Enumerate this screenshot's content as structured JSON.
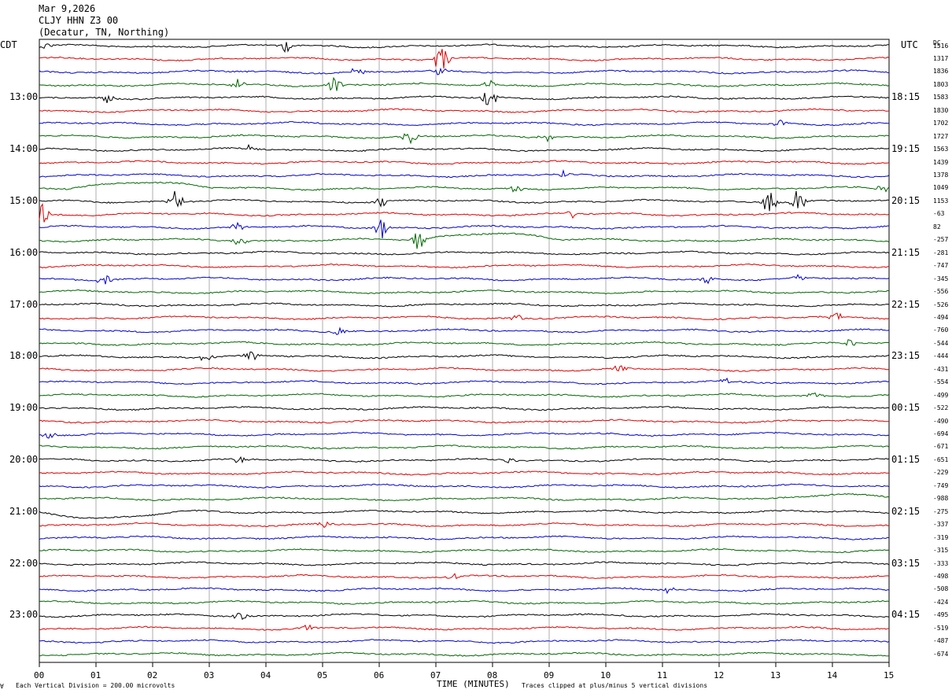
{
  "header": {
    "date": "Mar 9,2026",
    "station": "CLJY HHN Z3 00",
    "location": "(Decatur, TN, Northing)"
  },
  "left_zone_label": "CDT",
  "right_zone_label": "UTC",
  "dc_header": "DC",
  "footer": {
    "scale_note": "Each Vertical Division =  200.00 microvolts",
    "clip_note": "Traces clipped at plus/minus 5 vertical divisions",
    "corner_mark": "∀"
  },
  "colors": {
    "trace_cycle": [
      "#000000",
      "#dd0000",
      "#0000cc",
      "#006600"
    ],
    "grid": "#999999"
  },
  "chart_data": {
    "type": "line",
    "title": "CLJY HHN Z3 00",
    "xlabel": "TIME (MINUTES)",
    "ylabel": "",
    "xlim": [
      0,
      15
    ],
    "x_ticks": [
      "00",
      "01",
      "02",
      "03",
      "04",
      "05",
      "06",
      "07",
      "08",
      "09",
      "10",
      "11",
      "12",
      "13",
      "14",
      "15"
    ],
    "left_hour_labels": [
      "13:00",
      "14:00",
      "15:00",
      "16:00",
      "17:00",
      "18:00",
      "19:00",
      "20:00",
      "21:00",
      "22:00",
      "23:00"
    ],
    "right_hour_labels": [
      "18:15",
      "19:15",
      "20:15",
      "21:15",
      "22:15",
      "23:15",
      "00:15",
      "01:15",
      "02:15",
      "03:15",
      "04:15"
    ],
    "label_every_n_traces": 4,
    "label_first_trace": 4,
    "trace_count": 48,
    "dc_offsets": [
      "1516",
      "1317",
      "1836",
      "1803",
      "1583",
      "1830",
      "1702",
      "1727",
      "1563",
      "1439",
      "1378",
      "1049",
      "1153",
      "-63",
      "82",
      "-257",
      "-281",
      "-747",
      "-345",
      "-556",
      "-526",
      "-494",
      "-760",
      "-544",
      "-444",
      "-431",
      "-554",
      "-499",
      "-522",
      "-490",
      "-694",
      "-671",
      "-651",
      "-229",
      "-749",
      "-988",
      "-275",
      "-337",
      "-319",
      "-315",
      "-333",
      "-498",
      "-508",
      "-424",
      "-495",
      "-519",
      "-487",
      "-674"
    ],
    "events": [
      {
        "trace": 0,
        "minute": 4.35,
        "amp": 9
      },
      {
        "trace": 0,
        "minute": 0.1,
        "amp": 5
      },
      {
        "trace": 1,
        "minute": 7.1,
        "amp": 22
      },
      {
        "trace": 2,
        "minute": 5.6,
        "amp": 8
      },
      {
        "trace": 2,
        "minute": 7.05,
        "amp": 8
      },
      {
        "trace": 3,
        "minute": 5.2,
        "amp": 18
      },
      {
        "trace": 3,
        "minute": 3.5,
        "amp": 8
      },
      {
        "trace": 3,
        "minute": 7.95,
        "amp": 8
      },
      {
        "trace": 4,
        "minute": 1.2,
        "amp": 6
      },
      {
        "trace": 4,
        "minute": 7.95,
        "amp": 14
      },
      {
        "trace": 6,
        "minute": 13.1,
        "amp": 6
      },
      {
        "trace": 7,
        "minute": 6.55,
        "amp": 12
      },
      {
        "trace": 7,
        "minute": 8.95,
        "amp": 6
      },
      {
        "trace": 8,
        "minute": 3.7,
        "amp": 4
      },
      {
        "trace": 10,
        "minute": 9.25,
        "amp": 5
      },
      {
        "trace": 11,
        "minute": 8.4,
        "amp": 6
      },
      {
        "trace": 11,
        "minute": 14.9,
        "amp": 5
      },
      {
        "trace": 12,
        "minute": 2.4,
        "amp": 14
      },
      {
        "trace": 12,
        "minute": 6.05,
        "amp": 8
      },
      {
        "trace": 12,
        "minute": 12.9,
        "amp": 20
      },
      {
        "trace": 12,
        "minute": 13.4,
        "amp": 18
      },
      {
        "trace": 13,
        "minute": 0.05,
        "amp": 16
      },
      {
        "trace": 13,
        "minute": 9.4,
        "amp": 6
      },
      {
        "trace": 14,
        "minute": 6.05,
        "amp": 14
      },
      {
        "trace": 14,
        "minute": 3.5,
        "amp": 6
      },
      {
        "trace": 15,
        "minute": 6.7,
        "amp": 16
      },
      {
        "trace": 15,
        "minute": 3.55,
        "amp": 6
      },
      {
        "trace": 18,
        "minute": 1.15,
        "amp": 7
      },
      {
        "trace": 18,
        "minute": 11.8,
        "amp": 6
      },
      {
        "trace": 18,
        "minute": 13.4,
        "amp": 5
      },
      {
        "trace": 21,
        "minute": 8.45,
        "amp": 5
      },
      {
        "trace": 21,
        "minute": 14.05,
        "amp": 6
      },
      {
        "trace": 22,
        "minute": 5.3,
        "amp": 6
      },
      {
        "trace": 23,
        "minute": 14.3,
        "amp": 5
      },
      {
        "trace": 24,
        "minute": 2.95,
        "amp": 6
      },
      {
        "trace": 24,
        "minute": 3.75,
        "amp": 8
      },
      {
        "trace": 25,
        "minute": 10.25,
        "amp": 5
      },
      {
        "trace": 26,
        "minute": 12.1,
        "amp": 5
      },
      {
        "trace": 27,
        "minute": 13.7,
        "amp": 5
      },
      {
        "trace": 30,
        "minute": 0.2,
        "amp": 6
      },
      {
        "trace": 32,
        "minute": 3.55,
        "amp": 8
      },
      {
        "trace": 32,
        "minute": 8.3,
        "amp": 5
      },
      {
        "trace": 37,
        "minute": 5.05,
        "amp": 6
      },
      {
        "trace": 41,
        "minute": 7.3,
        "amp": 5
      },
      {
        "trace": 42,
        "minute": 11.1,
        "amp": 4
      },
      {
        "trace": 44,
        "minute": 3.55,
        "amp": 6
      },
      {
        "trace": 45,
        "minute": 4.75,
        "amp": 5
      }
    ],
    "drifts": [
      {
        "trace": 11,
        "start_minute": 0.5,
        "amp": 14
      },
      {
        "trace": 15,
        "start_minute": 6.7,
        "amp": 16
      },
      {
        "trace": 36,
        "start_minute": 0.0,
        "amp": 12
      },
      {
        "trace": 35,
        "start_minute": 12.8,
        "amp": 10
      }
    ]
  }
}
